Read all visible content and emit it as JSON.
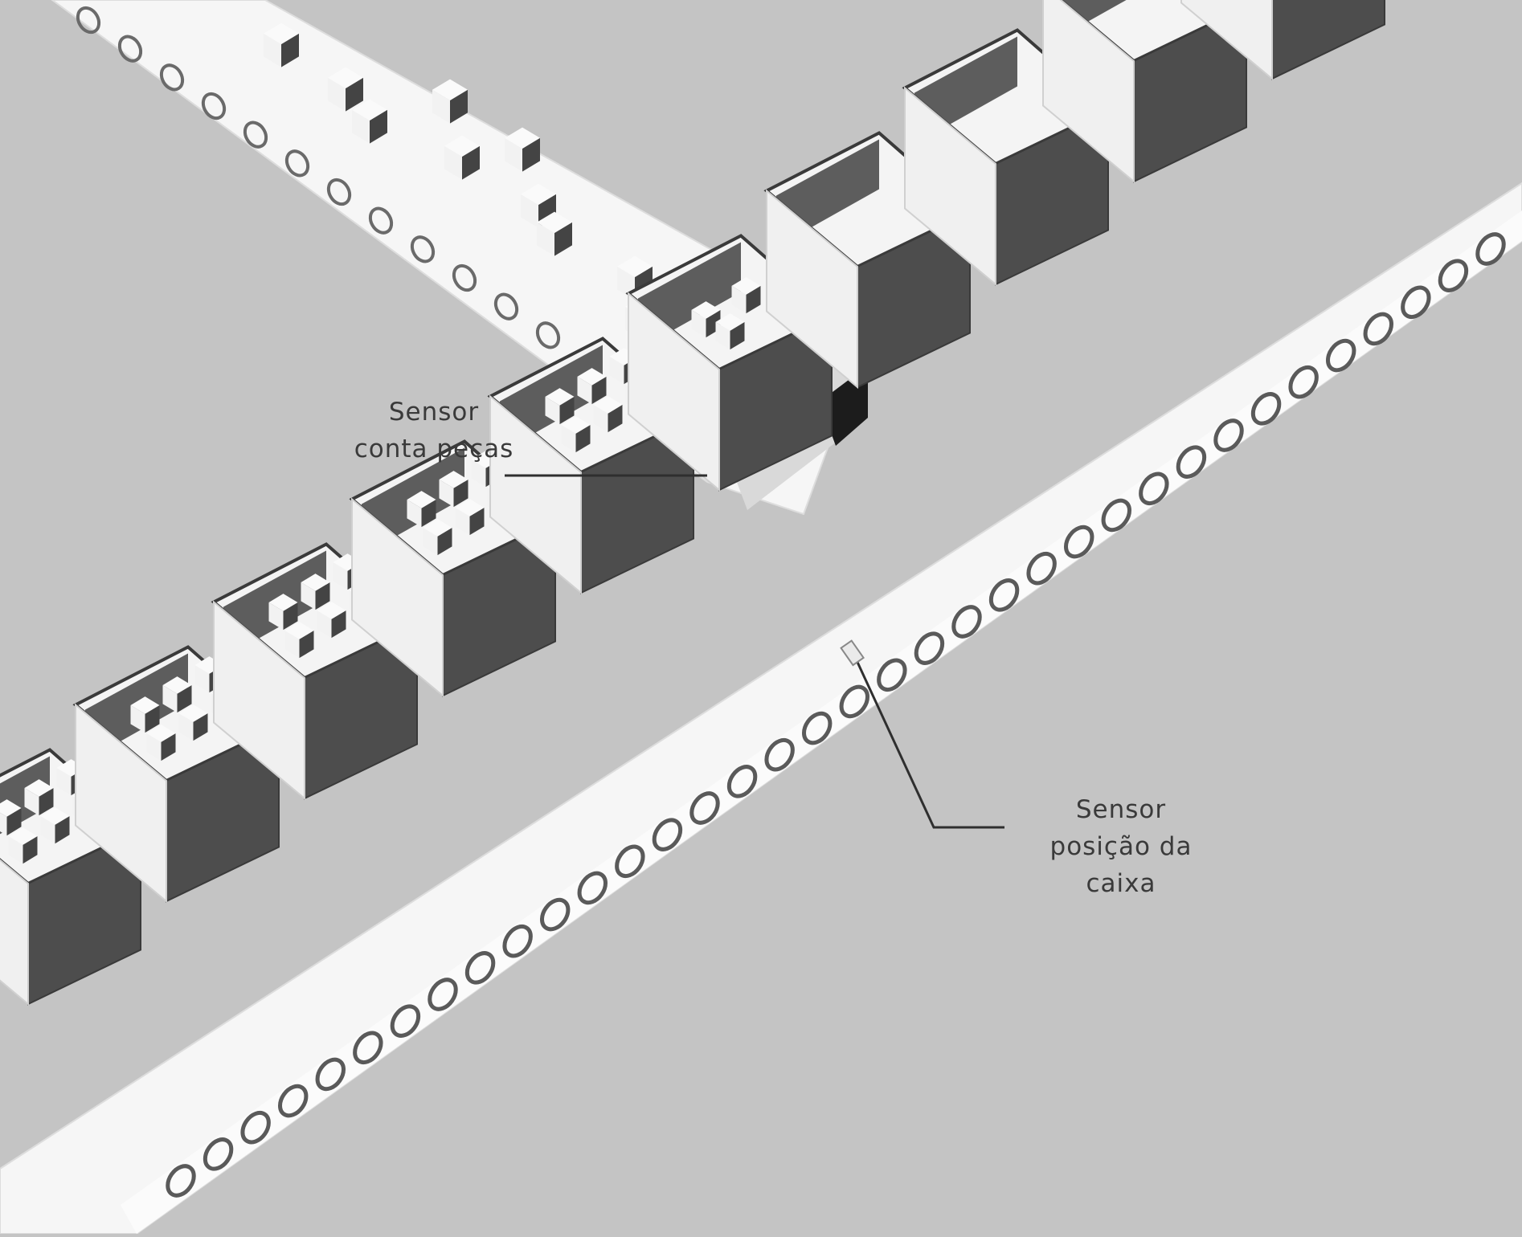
{
  "colors": {
    "background": "#c4c4c4",
    "belt": "#f6f6f6",
    "box_front": "#4d4d4d",
    "box_top_inner": "#ececec",
    "box_outline": "#3a3a3a",
    "roller": "#5a5a5a",
    "piece_light": "#f2f2f2",
    "piece_dark": "#444444",
    "leader_line": "#2f2f2f"
  },
  "labels": {
    "count_sensor": {
      "line1": "Sensor",
      "line2": "conta peças"
    },
    "position_sensor": {
      "line1": "Sensor",
      "line2": "posição da",
      "line3": "caixa"
    }
  },
  "scene": {
    "boxes_filled": 5,
    "box_receiving": 1,
    "boxes_empty": 4,
    "feed_conveyor_icon": "feed-conveyor",
    "box_conveyor_icon": "box-conveyor"
  }
}
